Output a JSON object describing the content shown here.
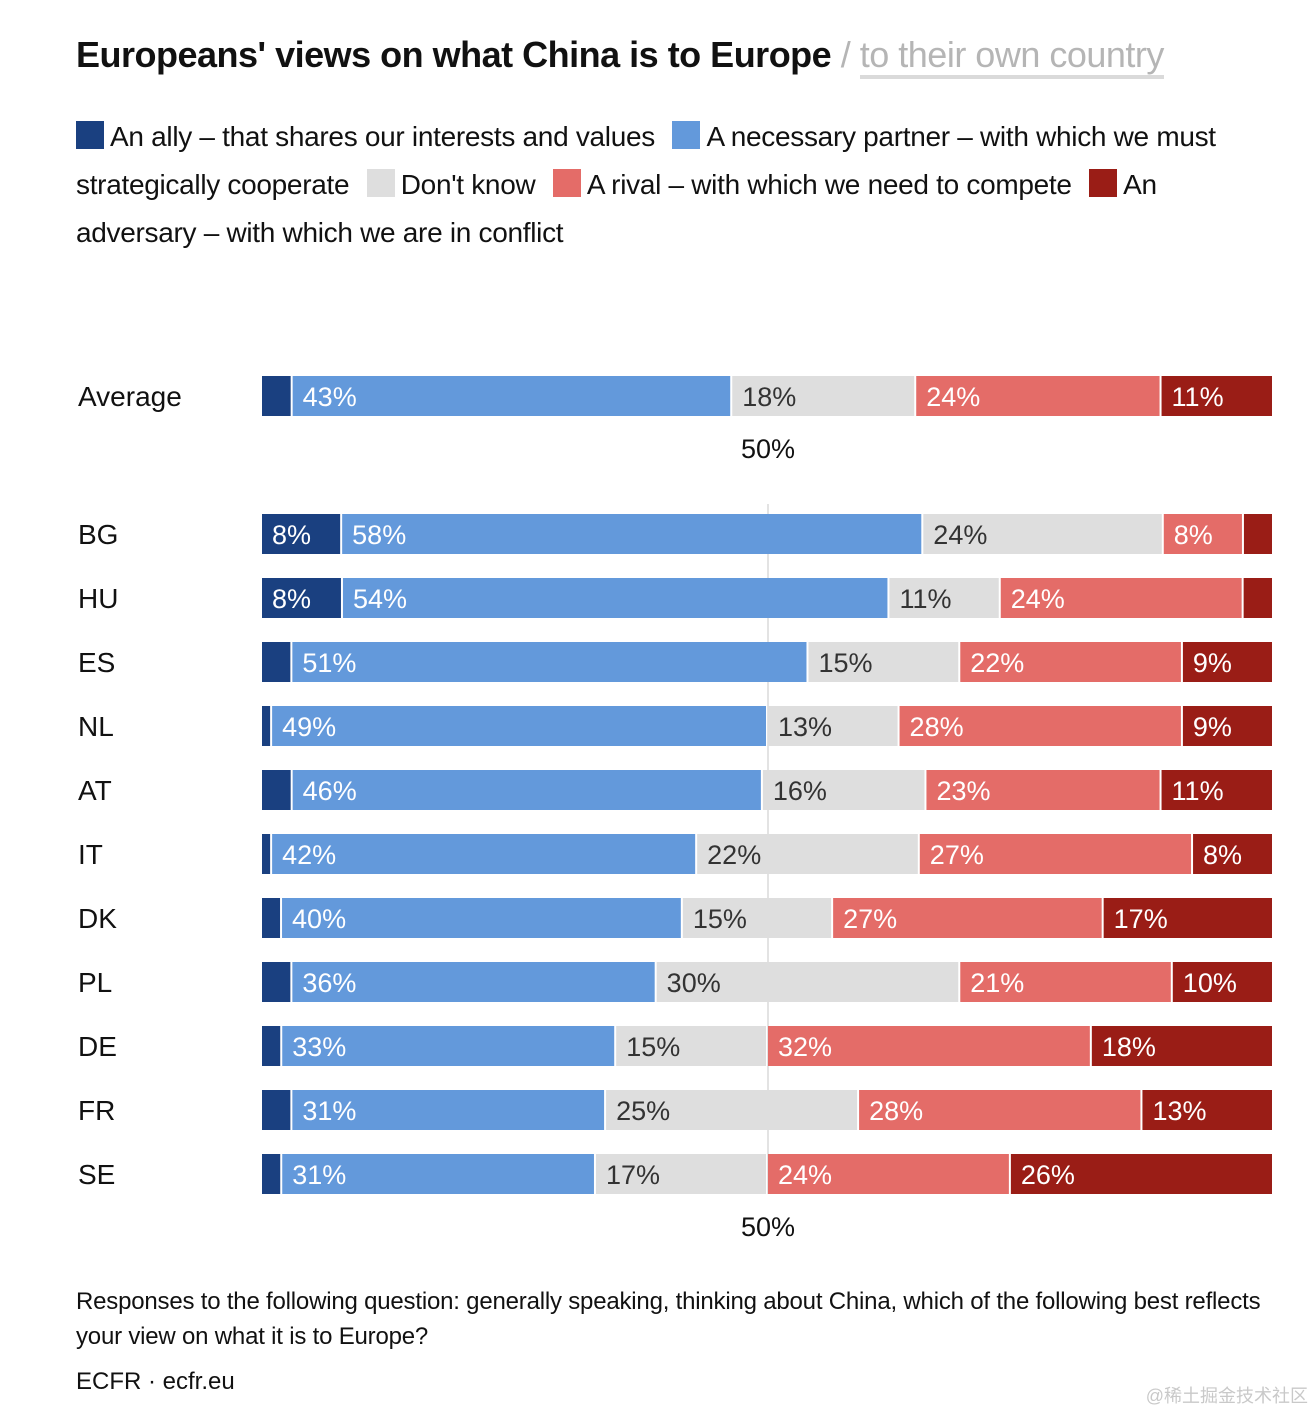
{
  "header": {
    "title_main": "Europeans' views on what China is to Europe",
    "title_sep": "/",
    "title_alt": "to their own country"
  },
  "legend": [
    {
      "label": "An ally – that shares our interests and values",
      "color": "#1a4080"
    },
    {
      "label": "A necessary partner – with which we must strategically cooperate",
      "color": "#6399db"
    },
    {
      "label": "Don't know",
      "color": "#dedede"
    },
    {
      "label": "A rival – with which we need to compete",
      "color": "#e46c68"
    },
    {
      "label": "An adversary – with which we are in conflict",
      "color": "#9a1d16"
    }
  ],
  "chart_data": {
    "type": "bar",
    "orientation": "horizontal",
    "stacked": true,
    "unit": "%",
    "reference_line": 50,
    "reference_label": "50%",
    "categories": [
      "Average",
      "BG",
      "HU",
      "ES",
      "NL",
      "AT",
      "IT",
      "DK",
      "PL",
      "DE",
      "FR",
      "SE"
    ],
    "series": [
      {
        "name": "An ally – that shares our interests and values",
        "color": "#1a4080",
        "text_color": "#ffffff",
        "values": [
          3,
          8,
          8,
          3,
          1,
          3,
          1,
          2,
          3,
          2,
          3,
          2
        ]
      },
      {
        "name": "A necessary partner – with which we must strategically cooperate",
        "color": "#6399db",
        "text_color": "#ffffff",
        "values": [
          43,
          58,
          54,
          51,
          49,
          46,
          42,
          40,
          36,
          33,
          31,
          31
        ]
      },
      {
        "name": "Don't know",
        "color": "#dedede",
        "text_color": "#333333",
        "values": [
          18,
          24,
          11,
          15,
          13,
          16,
          22,
          15,
          30,
          15,
          25,
          17
        ]
      },
      {
        "name": "A rival – with which we need to compete",
        "color": "#e46c68",
        "text_color": "#ffffff",
        "values": [
          24,
          8,
          24,
          22,
          28,
          23,
          27,
          27,
          21,
          32,
          28,
          24
        ]
      },
      {
        "name": "An adversary – with which we are in conflict",
        "color": "#9a1d16",
        "text_color": "#ffffff",
        "values": [
          11,
          3,
          3,
          9,
          9,
          11,
          8,
          17,
          10,
          18,
          13,
          26
        ]
      }
    ],
    "label_threshold": 5
  },
  "footer": {
    "note": "Responses to the following question: generally speaking, thinking about China, which of the following best reflects your view on what it is to Europe?",
    "source": "ECFR · ecfr.eu"
  },
  "watermark": "@稀土掘金技术社区"
}
